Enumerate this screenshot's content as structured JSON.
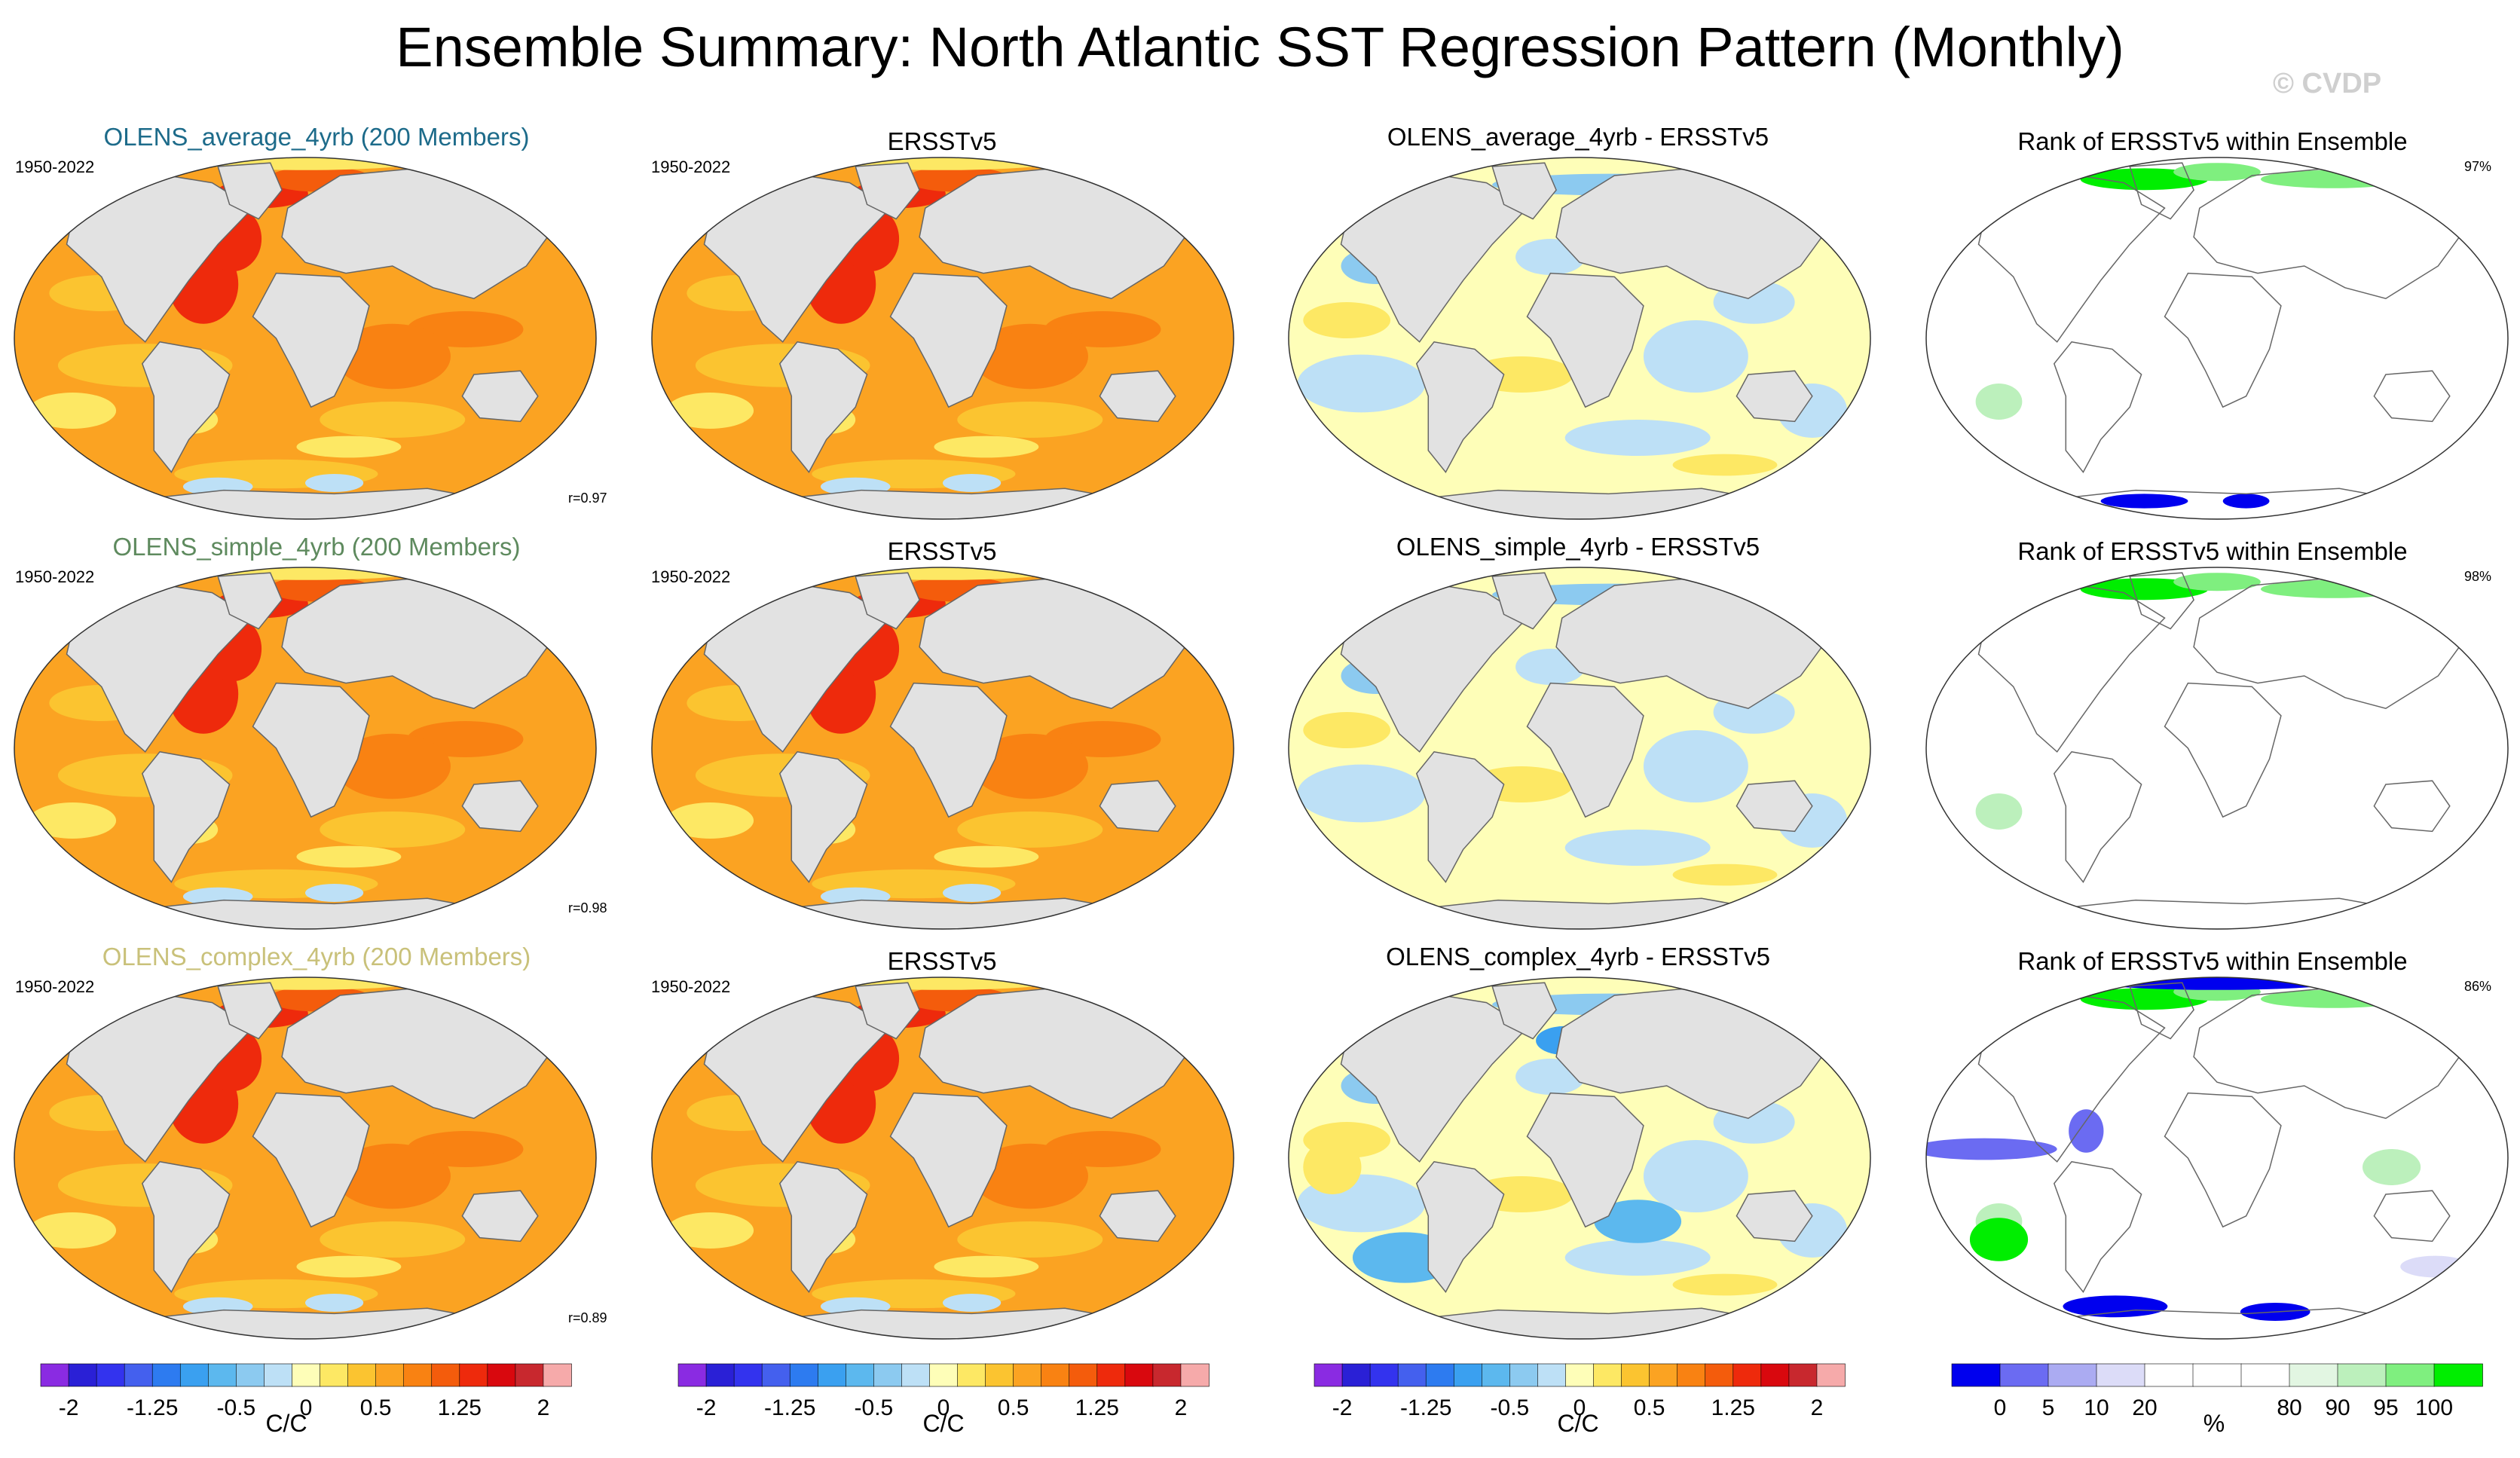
{
  "title": "Ensemble Summary: North Atlantic SST Regression Pattern (Monthly)",
  "watermark": "© CVDP",
  "colors": {
    "land": "#e2e2e2",
    "title_average": "#1d6b8a",
    "title_simple": "#5e8a5e",
    "title_complex": "#c9c17a"
  },
  "chart_data": {
    "type": "map-panel-grid",
    "rows": [
      {
        "model": "OLENS_average_4yrb (200 Members)",
        "model_title_color": "#1d6b8a",
        "period": "1950-2022",
        "reference_title": "ERSSTv5",
        "reference_period": "1950-2022",
        "difference_title": "OLENS_average_4yrb - ERSSTv5",
        "rank_title": "Rank of ERSSTv5 within Ensemble",
        "pattern_correlation": "r=0.97",
        "rank_percent": "97%"
      },
      {
        "model": "OLENS_simple_4yrb (200 Members)",
        "model_title_color": "#5e8a5e",
        "period": "1950-2022",
        "reference_title": "ERSSTv5",
        "reference_period": "1950-2022",
        "difference_title": "OLENS_simple_4yrb - ERSSTv5",
        "rank_title": "Rank of ERSSTv5 within Ensemble",
        "pattern_correlation": "r=0.98",
        "rank_percent": "98%"
      },
      {
        "model": "OLENS_complex_4yrb (200 Members)",
        "model_title_color": "#c9c17a",
        "period": "1950-2022",
        "reference_title": "ERSSTv5",
        "reference_period": "1950-2022",
        "difference_title": "OLENS_complex_4yrb - ERSSTv5",
        "rank_title": "Rank of ERSSTv5 within Ensemble",
        "pattern_correlation": "r=0.89",
        "rank_percent": "86%"
      }
    ],
    "regression_colorbar": {
      "units": "C/C",
      "tick_labels": [
        "-2",
        "-1.25",
        "-0.5",
        "0",
        "0.5",
        "1.25",
        "2"
      ],
      "colors": [
        "#8a2be2",
        "#2a20d6",
        "#3333ee",
        "#4460ee",
        "#2d7bf0",
        "#3aa0f0",
        "#5cb8ee",
        "#8ccaf0",
        "#bde0f6",
        "#fefeb8",
        "#fde864",
        "#fbc430",
        "#fba322",
        "#f98212",
        "#f45c0c",
        "#ee2a0c",
        "#d9080e",
        "#c8282e",
        "#f6aaaa"
      ]
    },
    "rank_colorbar": {
      "units": "%",
      "tick_labels": [
        "0",
        "5",
        "10",
        "20",
        "80",
        "90",
        "95",
        "100"
      ],
      "colors": [
        "#0000ee",
        "#6b6bf2",
        "#ababf2",
        "#dcdcf8",
        "#ffffff",
        "#ffffff",
        "#ffffff",
        "#e2f6e2",
        "#bcf0bc",
        "#7fef7f",
        "#00ee00"
      ]
    }
  }
}
